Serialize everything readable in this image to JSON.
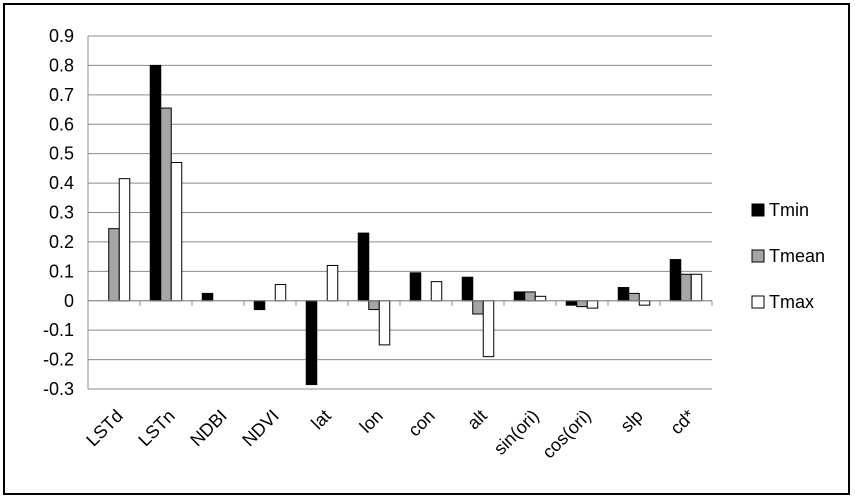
{
  "chart_data": {
    "type": "bar",
    "title": "",
    "xlabel": "",
    "ylabel": "",
    "ylim": [
      -0.3,
      0.9
    ],
    "yticks": [
      "0.9",
      "0.8",
      "0.7",
      "0.6",
      "0.5",
      "0.4",
      "0.3",
      "0.2",
      "0.1",
      "0",
      "-0.1",
      "-0.2",
      "-0.3"
    ],
    "grid": true,
    "legend_position": "right",
    "categories": [
      "LSTd",
      "LSTn",
      "NDBI",
      "NDVI",
      "lat",
      "lon",
      "con",
      "alt",
      "sin(ori)",
      "cos(ori)",
      "slp",
      "cd*"
    ],
    "series": [
      {
        "name": "Tmin",
        "color": "#000000",
        "values": [
          0.0,
          0.8,
          0.025,
          -0.03,
          -0.285,
          0.23,
          0.095,
          0.08,
          0.03,
          -0.015,
          0.045,
          0.14
        ]
      },
      {
        "name": "Tmean",
        "color": "#a6a6a6",
        "values": [
          0.245,
          0.655,
          0.0,
          0.0,
          0.0,
          -0.03,
          0.0,
          -0.045,
          0.03,
          -0.02,
          0.025,
          0.09
        ]
      },
      {
        "name": "Tmax",
        "color": "#ffffff",
        "values": [
          0.415,
          0.47,
          0.0,
          0.055,
          0.12,
          -0.15,
          0.065,
          -0.19,
          0.015,
          -0.025,
          -0.015,
          0.09
        ]
      }
    ]
  }
}
